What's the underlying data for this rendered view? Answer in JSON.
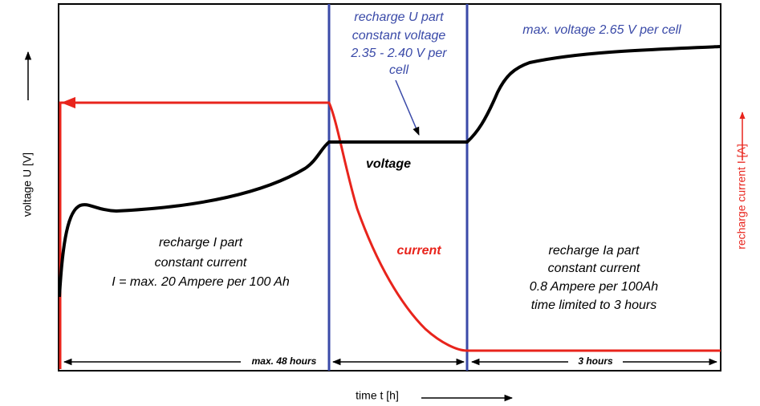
{
  "y_axis_label": "voltage U [V]",
  "y2_axis_label": "recharge current I [A]",
  "x_axis_label": "time t [h]",
  "u_part": [
    "recharge U part",
    "constant voltage",
    "2.35 - 2.40 V per",
    "cell"
  ],
  "max_voltage": "max. voltage 2.65 V per cell",
  "voltage_label": "voltage",
  "current_label": "current",
  "i_part": [
    "recharge I part",
    "constant current",
    "I = max. 20 Ampere per 100 Ah"
  ],
  "ia_part": [
    "recharge Ia part",
    "constant current",
    "0.8 Ampere per 100Ah",
    "time limited to 3 hours"
  ],
  "duration_1": "max. 48 hours",
  "duration_2": "3 hours"
}
